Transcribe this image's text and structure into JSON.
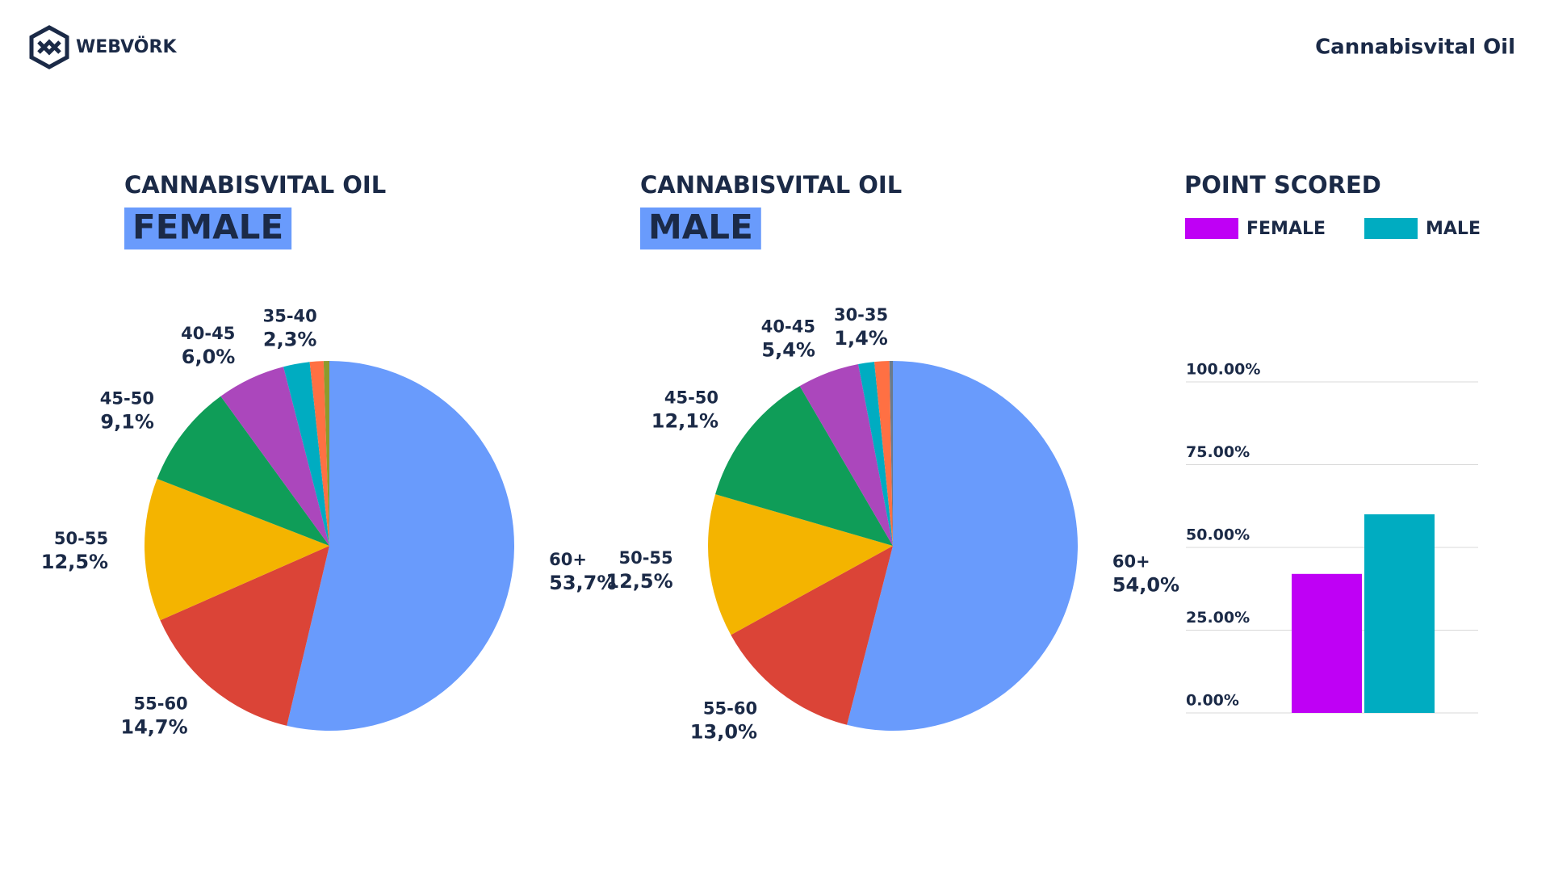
{
  "header": {
    "logo": "WEBVÖRK",
    "product": "Cannabisvital Oil"
  },
  "chart_data": [
    {
      "type": "pie",
      "title": "CANNABISVITAL OIL",
      "subtitle": "FEMALE",
      "categories": [
        "60+",
        "55-60",
        "50-55",
        "45-50",
        "40-45",
        "35-40",
        null,
        null
      ],
      "values": [
        53.7,
        14.7,
        12.5,
        9.1,
        6.0,
        2.3,
        1.2,
        0.5
      ],
      "value_labels": [
        "53,7%",
        "14,7%",
        "12,5%",
        "9,1%",
        "6,0%",
        "2,3%",
        null,
        null
      ],
      "colors": [
        "#699bfc",
        "#db4437",
        "#f4b400",
        "#0f9d58",
        "#ab47bc",
        "#00acc1",
        "#ff7043",
        "#8d9b2c"
      ]
    },
    {
      "type": "pie",
      "title": "CANNABISVITAL OIL",
      "subtitle": "MALE",
      "categories": [
        "60+",
        "55-60",
        "50-55",
        "45-50",
        "40-45",
        "30-35",
        null,
        null
      ],
      "values": [
        54.0,
        13.0,
        12.5,
        12.1,
        5.4,
        1.4,
        1.3,
        0.3
      ],
      "value_labels": [
        "54,0%",
        "13,0%",
        "12,5%",
        "12,1%",
        "5,4%",
        "1,4%",
        null,
        null
      ],
      "colors": [
        "#699bfc",
        "#db4437",
        "#f4b400",
        "#0f9d58",
        "#ab47bc",
        "#00acc1",
        "#ff7043",
        "#6b7b8c"
      ]
    },
    {
      "type": "bar",
      "title": "POINT SCORED",
      "legend": "top",
      "series": [
        {
          "name": "FEMALE",
          "color": "#bf00f5",
          "values": [
            42
          ]
        },
        {
          "name": "MALE",
          "color": "#00acc1",
          "values": [
            60
          ]
        }
      ],
      "ylim": [
        0,
        100
      ],
      "yticks": [
        {
          "value": 0,
          "label": "0.00%"
        },
        {
          "value": 25,
          "label": "25.00%"
        },
        {
          "value": 50,
          "label": "50.00%"
        },
        {
          "value": 75,
          "label": "75.00%"
        },
        {
          "value": 100,
          "label": "100.00%"
        }
      ],
      "grid": true
    }
  ]
}
